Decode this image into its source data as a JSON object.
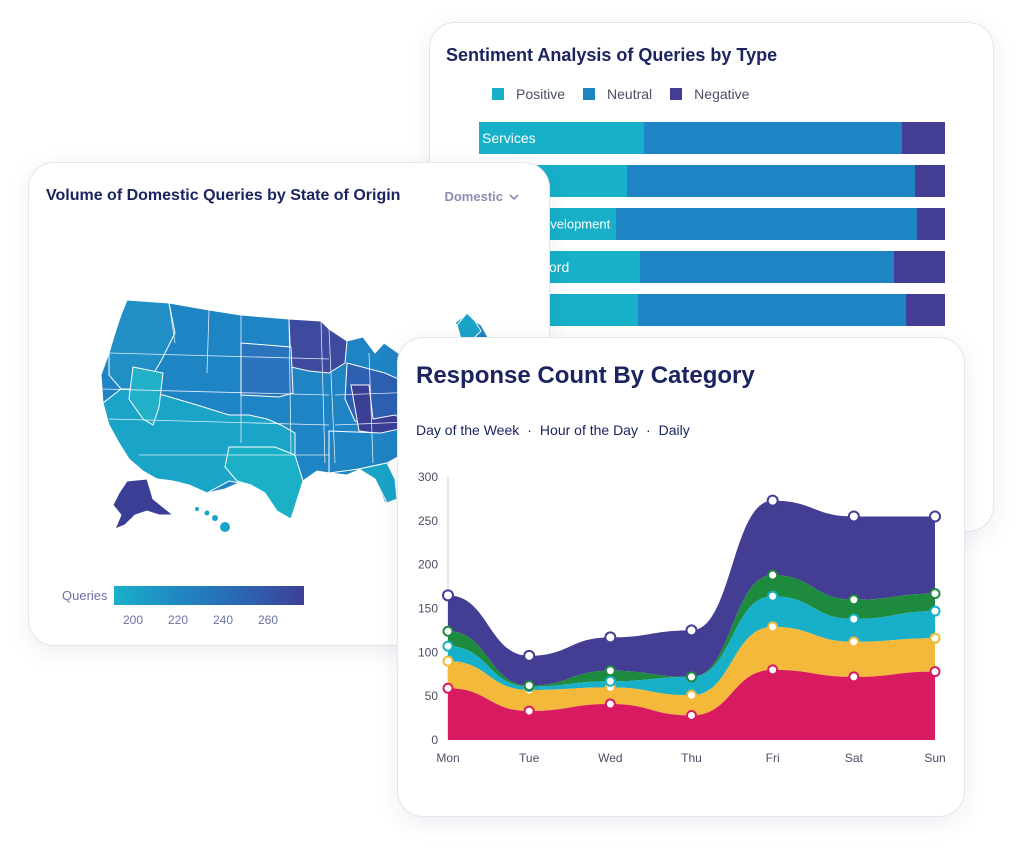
{
  "sentiment_card": {
    "title": "Sentiment Analysis of Queries by Type",
    "legend": [
      {
        "label": "Positive",
        "color": "#17b0c8"
      },
      {
        "label": "Neutral",
        "color": "#1f84c4"
      },
      {
        "label": "Negative",
        "color": "#433d93"
      }
    ],
    "bar_labels": [
      "Services",
      "",
      "evelopment",
      "ord",
      ""
    ]
  },
  "map_card": {
    "title": "Volume of Domestic Queries by State of Origin",
    "dropdown_value": "Domestic",
    "scale_label": "Queries",
    "scale_ticks": [
      "200",
      "220",
      "240",
      "260"
    ]
  },
  "response_card": {
    "title": "Response Count By Category",
    "tabs": [
      "Day of the Week",
      "Hour of the Day",
      "Daily"
    ],
    "tab_separator": "·"
  },
  "chart_data": [
    {
      "type": "bar",
      "title": "Sentiment Analysis of Queries by Type",
      "stacked": true,
      "orientation": "horizontal",
      "categories": [
        "Services",
        "",
        "evelopment",
        "ord",
        ""
      ],
      "series": [
        {
          "name": "Positive",
          "color": "#17b0c8",
          "values": [
            35.5,
            31.7,
            29.3,
            34.5,
            34.1
          ]
        },
        {
          "name": "Neutral",
          "color": "#1f84c4",
          "values": [
            55.3,
            61.8,
            64.6,
            54.6,
            57.5
          ]
        },
        {
          "name": "Negative",
          "color": "#433d93",
          "values": [
            9.2,
            6.5,
            6.1,
            10.9,
            8.4
          ]
        }
      ],
      "legend_position": "top"
    },
    {
      "type": "area",
      "title": "Response Count By Category",
      "stacked": true,
      "x": [
        "Mon",
        "Tue",
        "Wed",
        "Thu",
        "Fri",
        "Sat",
        "Sun"
      ],
      "yticks": [
        "0",
        "50",
        "100",
        "150",
        "200",
        "250",
        "300"
      ],
      "ylim": [
        0,
        300
      ],
      "series": [
        {
          "color": "#d81b60",
          "values": [
            59,
            33,
            41,
            28,
            80,
            72,
            78
          ]
        },
        {
          "color": "#f4b93a",
          "values": [
            31,
            24,
            19,
            23,
            49,
            40,
            38
          ]
        },
        {
          "color": "#17b0c8",
          "values": [
            17,
            4,
            7,
            21,
            35,
            26,
            31
          ]
        },
        {
          "color": "#1e8a3e",
          "values": [
            17,
            1,
            12,
            0,
            24,
            22,
            20
          ]
        },
        {
          "color": "#433d93",
          "values": [
            41,
            34,
            38,
            53,
            85,
            95,
            88
          ]
        }
      ],
      "grid": false
    }
  ]
}
